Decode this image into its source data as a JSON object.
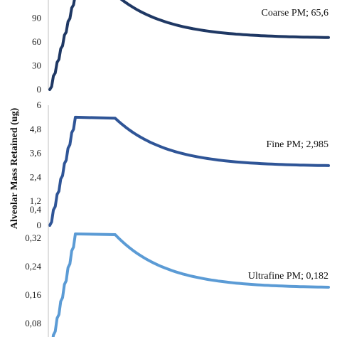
{
  "chart_data": {
    "type": "line",
    "ylabel": "Alveolar Mass Retained (ug)",
    "panels": [
      {
        "annotation": "Coarse PM; 65,6",
        "color": "#1f3864",
        "ylim": [
          0,
          120
        ],
        "ticks": [
          "0",
          "30",
          "60",
          "90"
        ],
        "tick_values": [
          0,
          30,
          60,
          90
        ],
        "series": {
          "values": [
            0,
            120,
            120,
            65.6
          ]
        }
      },
      {
        "annotation": "Fine PM; 2,985",
        "color": "#2f5597",
        "ylim": [
          0,
          6
        ],
        "ticks": [
          "0",
          "1,2",
          "2,4",
          "3,6",
          "4,8",
          "6"
        ],
        "tick_values": [
          0,
          1.2,
          2.4,
          3.6,
          4.8,
          6
        ],
        "series": {
          "values": [
            0,
            5.4,
            5.35,
            2.985
          ]
        }
      },
      {
        "annotation": "Ultrafine PM; 0,182",
        "color": "#5b9bd5",
        "ylim": [
          0,
          0.4
        ],
        "ticks": [
          "0,08",
          "0,16",
          "0,24",
          "0,32",
          "0,4"
        ],
        "tick_values": [
          0.08,
          0.16,
          0.24,
          0.32,
          0.4
        ],
        "series": {
          "values": [
            0,
            0.332,
            0.33,
            0.182
          ]
        }
      }
    ]
  }
}
